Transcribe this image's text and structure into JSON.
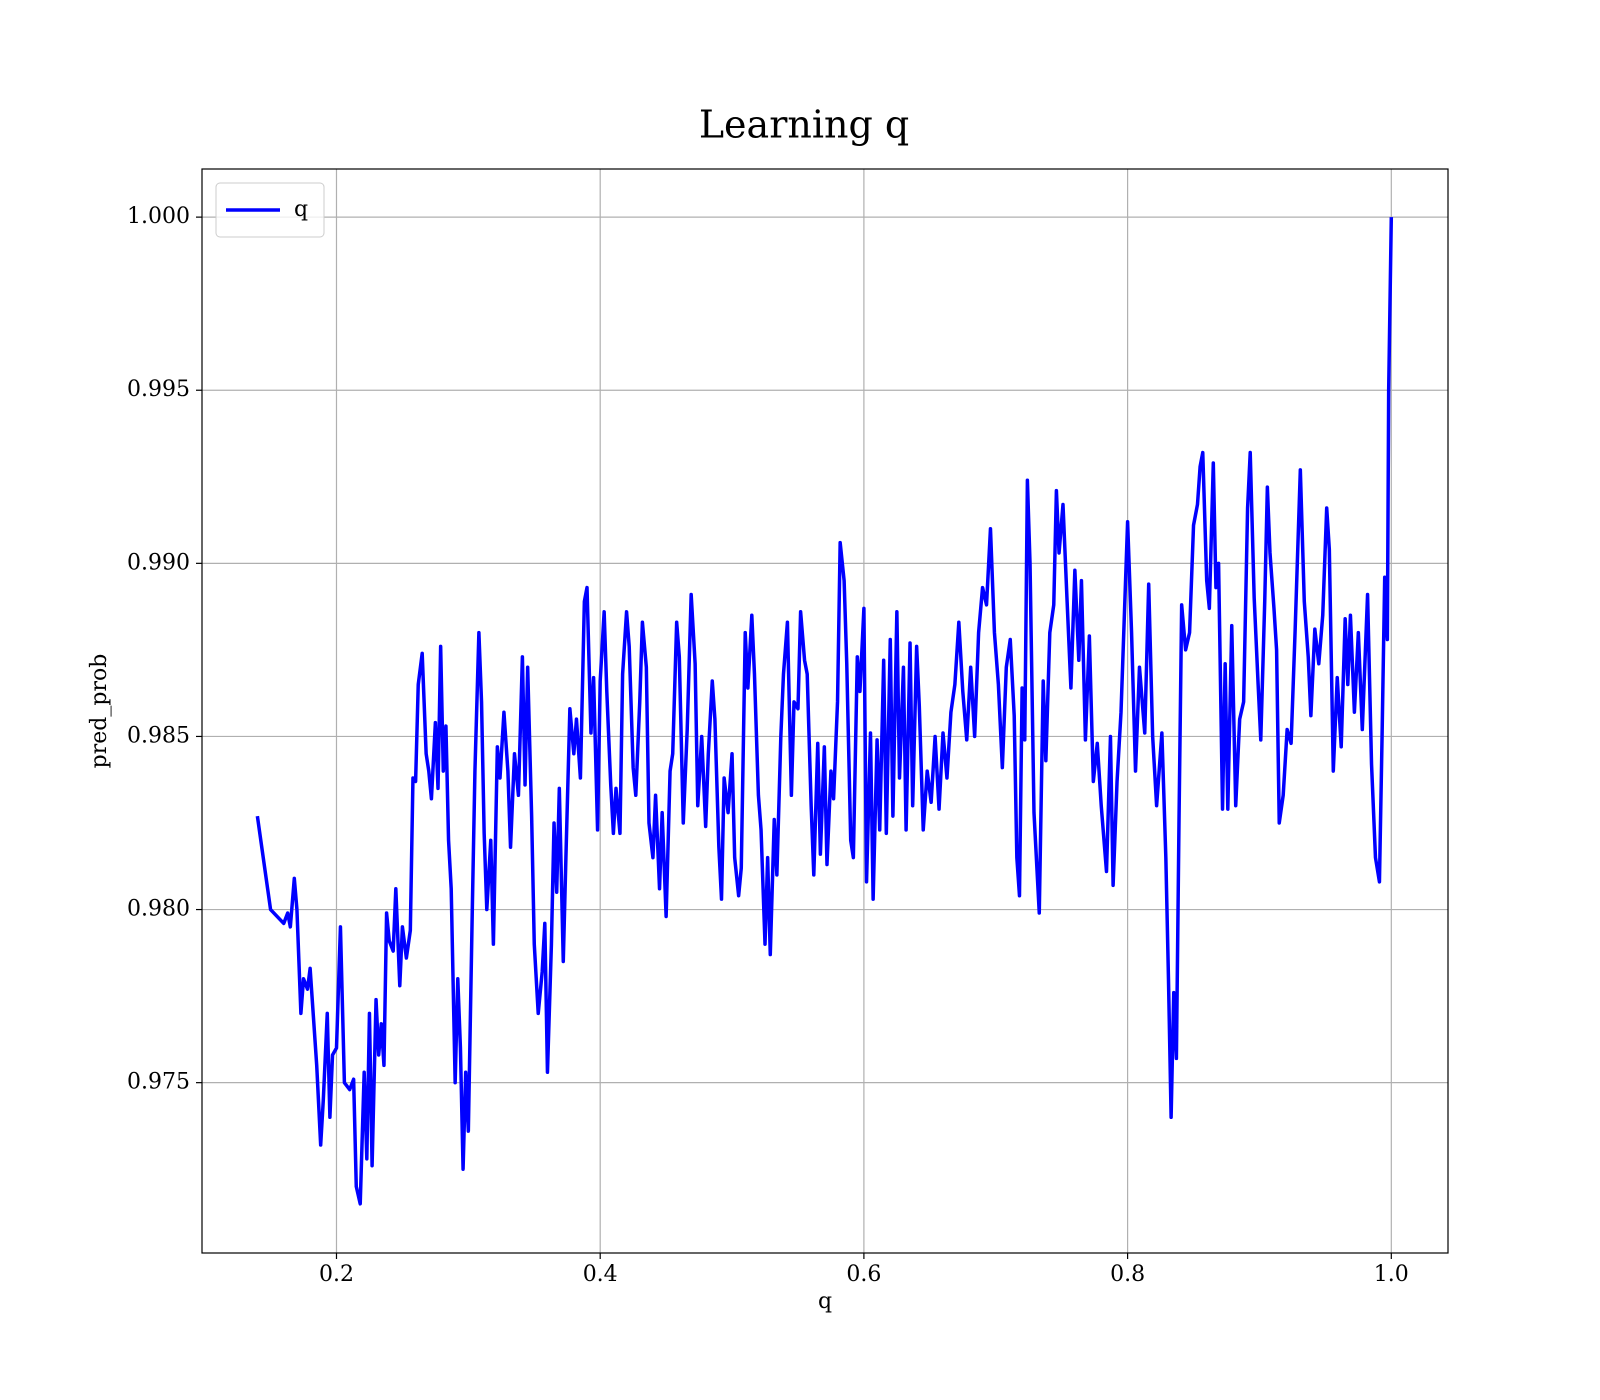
{
  "chart_data": {
    "type": "line",
    "title": "Learning q",
    "xlabel": "q",
    "ylabel": "pred_prob",
    "x": [
      0.14,
      0.15,
      0.16,
      0.163,
      0.165,
      0.168,
      0.17,
      0.173,
      0.175,
      0.178,
      0.18,
      0.185,
      0.188,
      0.19,
      0.193,
      0.195,
      0.197,
      0.2,
      0.203,
      0.206,
      0.21,
      0.213,
      0.215,
      0.218,
      0.221,
      0.223,
      0.225,
      0.227,
      0.23,
      0.232,
      0.234,
      0.236,
      0.238,
      0.24,
      0.243,
      0.245,
      0.248,
      0.25,
      0.253,
      0.256,
      0.258,
      0.26,
      0.262,
      0.265,
      0.268,
      0.27,
      0.272,
      0.275,
      0.277,
      0.279,
      0.281,
      0.283,
      0.285,
      0.287,
      0.29,
      0.292,
      0.294,
      0.296,
      0.298,
      0.3,
      0.303,
      0.305,
      0.308,
      0.31,
      0.312,
      0.314,
      0.317,
      0.319,
      0.322,
      0.324,
      0.327,
      0.33,
      0.332,
      0.335,
      0.338,
      0.341,
      0.343,
      0.345,
      0.348,
      0.35,
      0.353,
      0.356,
      0.358,
      0.36,
      0.363,
      0.365,
      0.367,
      0.369,
      0.372,
      0.374,
      0.377,
      0.38,
      0.382,
      0.385,
      0.388,
      0.39,
      0.393,
      0.395,
      0.398,
      0.4,
      0.403,
      0.405,
      0.408,
      0.41,
      0.412,
      0.415,
      0.417,
      0.42,
      0.422,
      0.425,
      0.427,
      0.43,
      0.432,
      0.435,
      0.437,
      0.44,
      0.442,
      0.445,
      0.447,
      0.45,
      0.453,
      0.455,
      0.458,
      0.46,
      0.463,
      0.466,
      0.469,
      0.472,
      0.474,
      0.477,
      0.48,
      0.482,
      0.485,
      0.487,
      0.49,
      0.492,
      0.494,
      0.497,
      0.5,
      0.502,
      0.505,
      0.507,
      0.51,
      0.512,
      0.515,
      0.517,
      0.52,
      0.522,
      0.525,
      0.527,
      0.529,
      0.532,
      0.534,
      0.537,
      0.539,
      0.542,
      0.545,
      0.547,
      0.55,
      0.552,
      0.555,
      0.557,
      0.56,
      0.562,
      0.565,
      0.567,
      0.57,
      0.572,
      0.575,
      0.577,
      0.58,
      0.582,
      0.585,
      0.587,
      0.59,
      0.592,
      0.595,
      0.597,
      0.6,
      0.602,
      0.605,
      0.607,
      0.61,
      0.612,
      0.615,
      0.617,
      0.62,
      0.622,
      0.625,
      0.627,
      0.63,
      0.632,
      0.635,
      0.637,
      0.64,
      0.642,
      0.645,
      0.648,
      0.651,
      0.654,
      0.657,
      0.66,
      0.663,
      0.666,
      0.669,
      0.672,
      0.675,
      0.678,
      0.681,
      0.684,
      0.687,
      0.69,
      0.693,
      0.696,
      0.699,
      0.702,
      0.705,
      0.708,
      0.711,
      0.714,
      0.716,
      0.718,
      0.72,
      0.722,
      0.724,
      0.726,
      0.729,
      0.733,
      0.736,
      0.738,
      0.741,
      0.744,
      0.746,
      0.748,
      0.751,
      0.754,
      0.757,
      0.76,
      0.763,
      0.765,
      0.768,
      0.771,
      0.774,
      0.777,
      0.78,
      0.784,
      0.787,
      0.789,
      0.792,
      0.795,
      0.798,
      0.8,
      0.803,
      0.806,
      0.809,
      0.813,
      0.816,
      0.819,
      0.822,
      0.826,
      0.829,
      0.831,
      0.833,
      0.835,
      0.837,
      0.839,
      0.841,
      0.844,
      0.847,
      0.85,
      0.853,
      0.855,
      0.857,
      0.86,
      0.862,
      0.865,
      0.867,
      0.869,
      0.872,
      0.874,
      0.876,
      0.879,
      0.882,
      0.885,
      0.888,
      0.891,
      0.893,
      0.896,
      0.899,
      0.901,
      0.904,
      0.906,
      0.908,
      0.911,
      0.913,
      0.915,
      0.918,
      0.921,
      0.924,
      0.927,
      0.931,
      0.934,
      0.937,
      0.939,
      0.942,
      0.945,
      0.948,
      0.951,
      0.953,
      0.956,
      0.959,
      0.962,
      0.965,
      0.967,
      0.969,
      0.972,
      0.975,
      0.978,
      0.982,
      0.985,
      0.988,
      0.991,
      0.993,
      0.995,
      0.997,
      0.998,
      1.0
    ],
    "series": [
      {
        "name": "q",
        "color": "#0000ff",
        "values": [
          0.9827,
          0.98,
          0.9796,
          0.9799,
          0.9795,
          0.9809,
          0.98,
          0.977,
          0.978,
          0.9777,
          0.9783,
          0.9755,
          0.9732,
          0.9745,
          0.977,
          0.974,
          0.9758,
          0.976,
          0.9795,
          0.975,
          0.9748,
          0.9751,
          0.972,
          0.9715,
          0.9753,
          0.9728,
          0.977,
          0.9726,
          0.9774,
          0.9758,
          0.9767,
          0.9755,
          0.9799,
          0.9791,
          0.9788,
          0.9806,
          0.9778,
          0.9795,
          0.9786,
          0.9794,
          0.9838,
          0.9837,
          0.9865,
          0.9874,
          0.9845,
          0.984,
          0.9832,
          0.9854,
          0.9835,
          0.9876,
          0.984,
          0.9853,
          0.982,
          0.9806,
          0.975,
          0.978,
          0.976,
          0.9725,
          0.9753,
          0.9736,
          0.98,
          0.984,
          0.988,
          0.986,
          0.9822,
          0.98,
          0.982,
          0.979,
          0.9847,
          0.9838,
          0.9857,
          0.984,
          0.9818,
          0.9845,
          0.9833,
          0.9873,
          0.9836,
          0.987,
          0.9827,
          0.979,
          0.977,
          0.9782,
          0.9796,
          0.9753,
          0.979,
          0.9825,
          0.9805,
          0.9835,
          0.9785,
          0.9815,
          0.9858,
          0.9845,
          0.9855,
          0.9838,
          0.9889,
          0.9893,
          0.9851,
          0.9867,
          0.9823,
          0.9866,
          0.9886,
          0.9863,
          0.9836,
          0.9822,
          0.9835,
          0.9822,
          0.9868,
          0.9886,
          0.9876,
          0.9841,
          0.9833,
          0.986,
          0.9883,
          0.987,
          0.9825,
          0.9815,
          0.9833,
          0.9806,
          0.9828,
          0.9798,
          0.984,
          0.9845,
          0.9883,
          0.9873,
          0.9825,
          0.9852,
          0.9891,
          0.9871,
          0.983,
          0.985,
          0.9824,
          0.9845,
          0.9866,
          0.9855,
          0.9818,
          0.9803,
          0.9838,
          0.9828,
          0.9845,
          0.9815,
          0.9804,
          0.9812,
          0.988,
          0.9864,
          0.9885,
          0.9868,
          0.9833,
          0.9823,
          0.979,
          0.9815,
          0.9787,
          0.9826,
          0.981,
          0.985,
          0.9868,
          0.9883,
          0.9833,
          0.986,
          0.9858,
          0.9886,
          0.9872,
          0.9868,
          0.983,
          0.981,
          0.9848,
          0.9816,
          0.9847,
          0.9813,
          0.984,
          0.9832,
          0.986,
          0.9906,
          0.9895,
          0.9871,
          0.982,
          0.9815,
          0.9873,
          0.9863,
          0.9887,
          0.9808,
          0.9851,
          0.9803,
          0.9849,
          0.9823,
          0.9872,
          0.9822,
          0.9878,
          0.9827,
          0.9886,
          0.9838,
          0.987,
          0.9823,
          0.9877,
          0.983,
          0.9876,
          0.9859,
          0.9823,
          0.984,
          0.9831,
          0.985,
          0.9829,
          0.9851,
          0.9838,
          0.9857,
          0.9865,
          0.9883,
          0.9863,
          0.9849,
          0.987,
          0.985,
          0.988,
          0.9893,
          0.9888,
          0.991,
          0.988,
          0.9865,
          0.9841,
          0.987,
          0.9878,
          0.9856,
          0.9815,
          0.9804,
          0.9864,
          0.9849,
          0.9924,
          0.99,
          0.9828,
          0.9799,
          0.9866,
          0.9843,
          0.988,
          0.9888,
          0.9921,
          0.9903,
          0.9917,
          0.989,
          0.9864,
          0.9898,
          0.9872,
          0.9895,
          0.9849,
          0.9879,
          0.9837,
          0.9848,
          0.983,
          0.9811,
          0.985,
          0.9807,
          0.9837,
          0.9857,
          0.989,
          0.9912,
          0.988,
          0.984,
          0.987,
          0.9851,
          0.9894,
          0.985,
          0.983,
          0.9851,
          0.9815,
          0.978,
          0.974,
          0.9776,
          0.9757,
          0.9826,
          0.9888,
          0.9875,
          0.988,
          0.9911,
          0.9917,
          0.9928,
          0.9932,
          0.9895,
          0.9887,
          0.9929,
          0.9893,
          0.99,
          0.9829,
          0.9871,
          0.9829,
          0.9882,
          0.983,
          0.9855,
          0.986,
          0.9916,
          0.9932,
          0.989,
          0.9865,
          0.9849,
          0.9889,
          0.9922,
          0.9903,
          0.9887,
          0.9875,
          0.9825,
          0.9833,
          0.9852,
          0.9848,
          0.988,
          0.9927,
          0.9889,
          0.9873,
          0.9856,
          0.9881,
          0.9871,
          0.9885,
          0.9916,
          0.9904,
          0.984,
          0.9867,
          0.9847,
          0.9884,
          0.9865,
          0.9885,
          0.9857,
          0.988,
          0.9852,
          0.9891,
          0.9842,
          0.9815,
          0.9808,
          0.985,
          0.9896,
          0.9878,
          0.995,
          1.0
        ]
      }
    ],
    "xlim": [
      0.098,
      1.043
    ],
    "ylim": [
      0.97008,
      1.00139
    ],
    "xticks": [
      0.2,
      0.4,
      0.6,
      0.8,
      {
        "value": 1,
        "label": "1.0"
      }
    ],
    "yticks": [
      0.975,
      {
        "value": 0.98,
        "label": "0.980"
      },
      0.985,
      {
        "value": 0.99,
        "label": "0.990"
      },
      0.995,
      {
        "value": 1,
        "label": "1.000"
      }
    ],
    "grid": true,
    "legend": "upper left"
  }
}
